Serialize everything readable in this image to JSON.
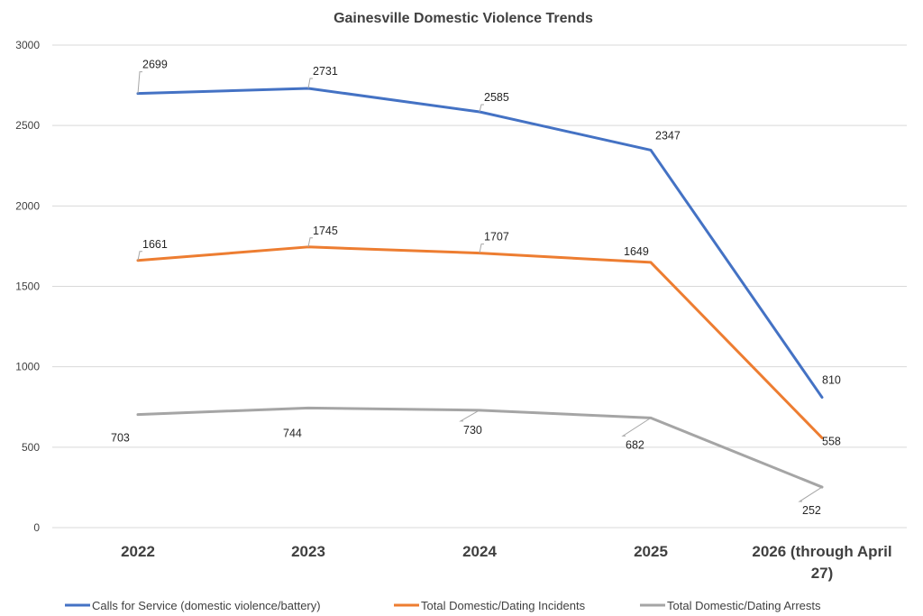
{
  "chart_data": {
    "type": "line",
    "title": "Gainesville Domestic Violence Trends",
    "xlabel": "",
    "ylabel": "",
    "categories": [
      [
        "2022"
      ],
      [
        "2023"
      ],
      [
        "2024"
      ],
      [
        "2025"
      ],
      [
        "2026 (through April",
        "27)"
      ]
    ],
    "ylim": [
      0,
      3000
    ],
    "yticks": [
      0,
      500,
      1000,
      1500,
      2000,
      2500,
      3000
    ],
    "grid": true,
    "legend_position": "bottom",
    "series": [
      {
        "name": "Calls for Service (domestic violence/battery)",
        "color": "#4472c4",
        "values": [
          2699,
          2731,
          2585,
          2347,
          810
        ]
      },
      {
        "name": "Total Domestic/Dating Incidents",
        "color": "#ed7d31",
        "values": [
          1661,
          1745,
          1707,
          1649,
          558
        ]
      },
      {
        "name": "Total Domestic/Dating Arrests",
        "color": "#a5a5a5",
        "values": [
          703,
          744,
          730,
          682,
          252
        ]
      }
    ]
  }
}
